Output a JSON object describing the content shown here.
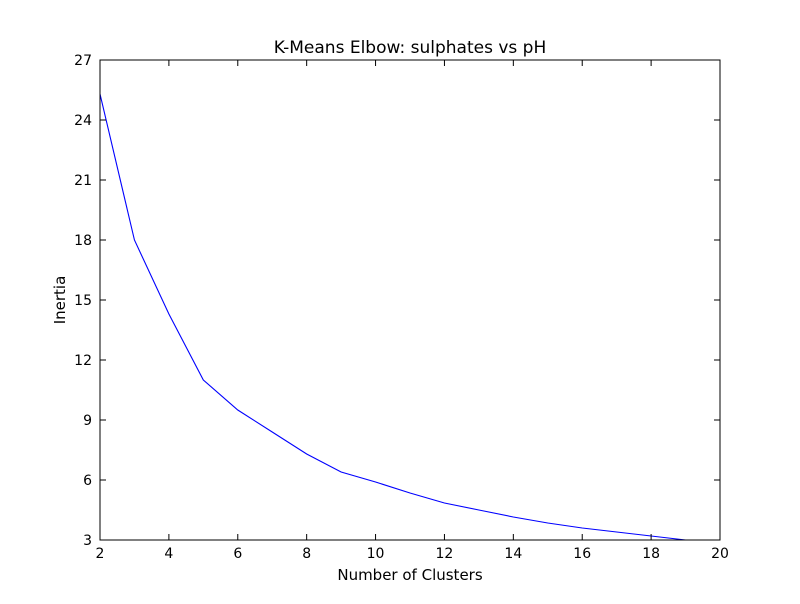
{
  "chart_data": {
    "type": "line",
    "title": "K-Means Elbow: sulphates vs pH",
    "xlabel": "Number of Clusters",
    "ylabel": "Inertia",
    "xlim": [
      2,
      20
    ],
    "ylim": [
      3,
      27
    ],
    "xticks": [
      2,
      4,
      6,
      8,
      10,
      12,
      14,
      16,
      18,
      20
    ],
    "yticks": [
      3,
      6,
      9,
      12,
      15,
      18,
      21,
      24,
      27
    ],
    "grid": false,
    "line_color": "#0000ff",
    "series": [
      {
        "x": [
          2,
          3,
          4,
          5,
          6,
          7,
          8,
          9,
          10,
          11,
          12,
          13,
          14,
          15,
          16,
          17,
          18,
          19
        ],
        "y": [
          25.3,
          18.0,
          14.3,
          11.0,
          9.5,
          8.4,
          7.3,
          6.4,
          5.9,
          5.35,
          4.85,
          4.5,
          4.15,
          3.85,
          3.6,
          3.4,
          3.2,
          3.0
        ]
      }
    ]
  }
}
